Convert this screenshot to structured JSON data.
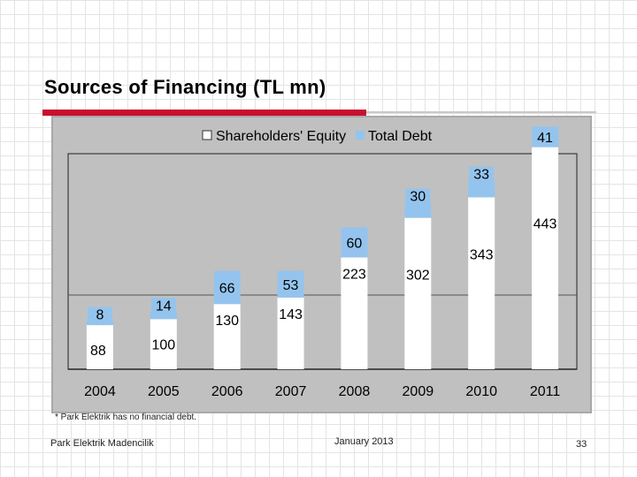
{
  "slide": {
    "title": "Sources of Financing (TL mn)",
    "footnote": "* Park Elektrik has no financial debt.",
    "footer_left": "Park Elektrik Madencilik",
    "footer_center": "January 2013",
    "page_number": "33"
  },
  "colors": {
    "accent_rule": "#c8102e",
    "equity_fill": "#ffffff",
    "debt_fill": "#94c4ee",
    "plot_bg": "#c0c0c0"
  },
  "chart_data": {
    "type": "bar",
    "stacked": true,
    "title": "",
    "xlabel": "",
    "ylabel": "",
    "categories": [
      "2004",
      "2005",
      "2006",
      "2007",
      "2008",
      "2009",
      "2010",
      "2011"
    ],
    "series": [
      {
        "name": "Shareholders' Equity",
        "values": [
          88,
          100,
          130,
          143,
          223,
          302,
          343,
          443
        ]
      },
      {
        "name": "Total Debt",
        "values": [
          8,
          14,
          66,
          53,
          60,
          30,
          33,
          41
        ]
      }
    ],
    "ylim": [
      0,
      500
    ],
    "legend_position": "top-center"
  }
}
